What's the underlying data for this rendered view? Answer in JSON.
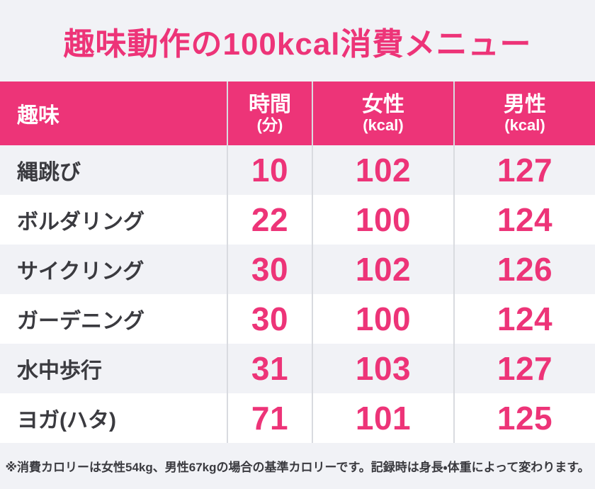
{
  "page": {
    "title": "趣味動作の100kcal消費メニュー",
    "footnote": "※消費カロリーは女性54kg、男性67kgの場合の基準カロリーです。記録時は身長・体重によって変わります。"
  },
  "colors": {
    "accent_pink": "#ed3478",
    "page_background": "#f1f2f6",
    "row_white": "#ffffff",
    "dark_text": "#3a3a3f",
    "divider": "#d9dbe0",
    "header_text": "#ffffff"
  },
  "table": {
    "headers": [
      {
        "label": "趣味",
        "unit": ""
      },
      {
        "label": "時間",
        "unit": "(分)"
      },
      {
        "label": "女性",
        "unit": "(kcal)"
      },
      {
        "label": "男性",
        "unit": "(kcal)"
      }
    ],
    "rows": [
      {
        "activity": "縄跳び",
        "minutes": "10",
        "female": "102",
        "male": "127"
      },
      {
        "activity": "ボルダリング",
        "minutes": "22",
        "female": "100",
        "male": "124"
      },
      {
        "activity": "サイクリング",
        "minutes": "30",
        "female": "102",
        "male": "126"
      },
      {
        "activity": "ガーデニング",
        "minutes": "30",
        "female": "100",
        "male": "124"
      },
      {
        "activity": "水中歩行",
        "minutes": "31",
        "female": "103",
        "male": "127"
      },
      {
        "activity": "ヨガ(ハタ)",
        "minutes": "71",
        "female": "101",
        "male": "125"
      }
    ]
  },
  "chart_data": {
    "type": "table",
    "title": "趣味動作の100kcal消費メニュー",
    "columns": [
      "趣味",
      "時間(分)",
      "女性(kcal)",
      "男性(kcal)"
    ],
    "rows": [
      [
        "縄跳び",
        10,
        102,
        127
      ],
      [
        "ボルダリング",
        22,
        100,
        124
      ],
      [
        "サイクリング",
        30,
        102,
        126
      ],
      [
        "ガーデニング",
        30,
        100,
        124
      ],
      [
        "水中歩行",
        31,
        103,
        127
      ],
      [
        "ヨガ(ハタ)",
        71,
        101,
        125
      ]
    ],
    "footnote": "※消費カロリーは女性54kg、男性67kgの場合の基準カロリーです。記録時は身長・体重によって変わります。"
  }
}
